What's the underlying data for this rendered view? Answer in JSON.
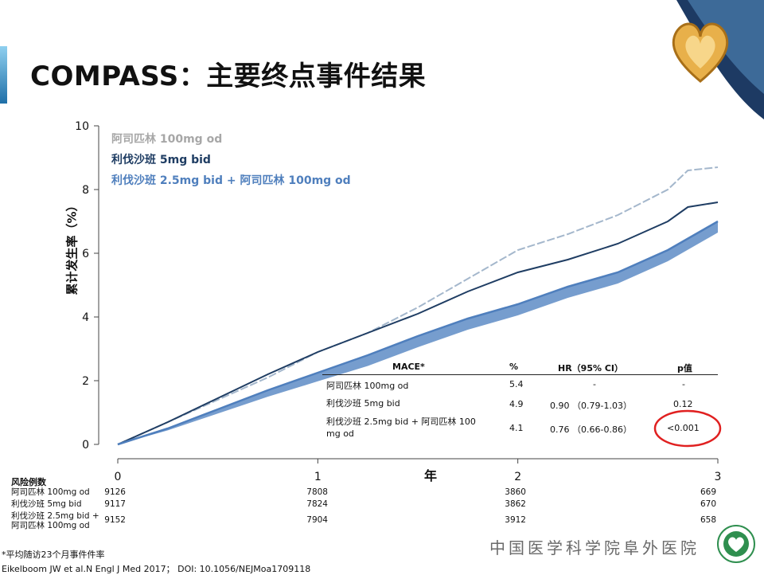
{
  "slide": {
    "title": "COMPASS：主要终点事件结果",
    "footnote": "*平均随访23个月事件件率",
    "reference": "Eikelboom JW et al.N Engl J Med 2017； DOI: 10.1056/NEJMoa1709118",
    "hospital": "中国医学科学院阜外医院",
    "colors": {
      "accent": "#1f6fa8",
      "ellipse": "#e02020",
      "gold": "#c8902a"
    }
  },
  "chart_data": {
    "type": "line",
    "xlabel": "年",
    "ylabel": "累计发生率（%）",
    "xlim": [
      0,
      3
    ],
    "ylim": [
      0,
      10
    ],
    "x_ticks": [
      "0",
      "1",
      "2",
      "3"
    ],
    "y_ticks": [
      "0",
      "2",
      "4",
      "6",
      "8",
      "10"
    ],
    "series": [
      {
        "name": "阿司匹林 100mg od",
        "color": "#a4b7cc",
        "points": [
          [
            0,
            0
          ],
          [
            0.25,
            0.7
          ],
          [
            0.5,
            1.4
          ],
          [
            0.75,
            2.1
          ],
          [
            1,
            2.9
          ],
          [
            1.25,
            3.5
          ],
          [
            1.5,
            4.3
          ],
          [
            1.75,
            5.2
          ],
          [
            2,
            6.1
          ],
          [
            2.25,
            6.6
          ],
          [
            2.5,
            7.2
          ],
          [
            2.75,
            8
          ],
          [
            2.85,
            8.6
          ],
          [
            3,
            8.7
          ]
        ]
      },
      {
        "name": "利伐沙班 5mg bid",
        "color": "#1f3d63",
        "points": [
          [
            0,
            0
          ],
          [
            0.25,
            0.7
          ],
          [
            0.5,
            1.45
          ],
          [
            0.75,
            2.2
          ],
          [
            1,
            2.9
          ],
          [
            1.25,
            3.5
          ],
          [
            1.5,
            4.1
          ],
          [
            1.75,
            4.8
          ],
          [
            2,
            5.4
          ],
          [
            2.25,
            5.8
          ],
          [
            2.5,
            6.3
          ],
          [
            2.75,
            7
          ],
          [
            2.85,
            7.45
          ],
          [
            3,
            7.6
          ]
        ]
      },
      {
        "name": "利伐沙班 2.5mg bid + 阿司匹林 100mg od",
        "color": "#4f7fbd",
        "points": [
          [
            0,
            0
          ],
          [
            0.25,
            0.5
          ],
          [
            0.5,
            1.1
          ],
          [
            0.75,
            1.7
          ],
          [
            1,
            2.25
          ],
          [
            1.25,
            2.8
          ],
          [
            1.5,
            3.4
          ],
          [
            1.75,
            3.95
          ],
          [
            2,
            4.4
          ],
          [
            2.25,
            4.95
          ],
          [
            2.5,
            5.4
          ],
          [
            2.75,
            6.1
          ],
          [
            3,
            7.0
          ]
        ]
      }
    ],
    "table": {
      "headers": [
        "MACE*",
        "%",
        "HR（95%  CI）",
        "p值"
      ],
      "rows": [
        {
          "name": "阿司匹林 100mg od",
          "pct": "5.4",
          "hr": "-",
          "p": "-"
        },
        {
          "name": "利伐沙班 5mg bid",
          "pct": "4.9",
          "hr": "0.90 （0.79-1.03）",
          "p": "0.12"
        },
        {
          "name": "利伐沙班 2.5mg bid + 阿司匹林 100 mg od",
          "pct": "4.1",
          "hr": "0.76 （0.66-0.86）",
          "p": "<0.001"
        }
      ]
    },
    "risk": {
      "title": "风险例数",
      "rows": [
        {
          "label": "阿司匹林 100mg od",
          "values": [
            "9126",
            "7808",
            "3860",
            "669"
          ]
        },
        {
          "label": "利伐沙班 5mg bid",
          "values": [
            "9117",
            "7824",
            "3862",
            "670"
          ]
        },
        {
          "label": "利伐沙班 2.5mg bid + 阿司匹林 100mg od",
          "values": [
            "9152",
            "7904",
            "3912",
            "658"
          ]
        }
      ]
    }
  }
}
